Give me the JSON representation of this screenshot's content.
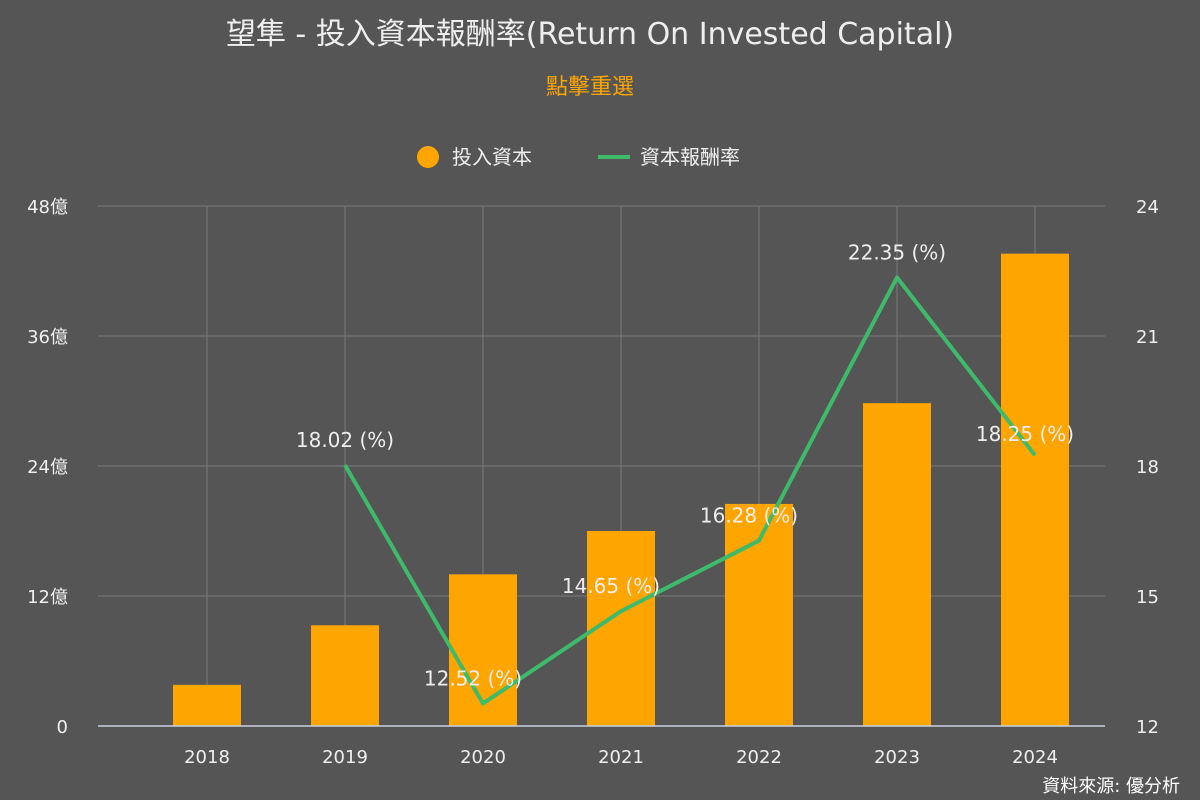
{
  "title": "望隼 - 投入資本報酬率(Return On Invested Capital)",
  "subtitle": "點擊重選",
  "source": "資料來源: 優分析",
  "colors": {
    "bar": "#ffa500",
    "line": "#3dbb6a",
    "background": "#555555"
  },
  "chart_data": {
    "type": "bar",
    "categories": [
      "2018",
      "2019",
      "2020",
      "2021",
      "2022",
      "2023",
      "2024"
    ],
    "series": [
      {
        "name": "投入資本",
        "type": "bar",
        "axis": "left",
        "values": [
          3.8,
          9.3,
          14.0,
          18.0,
          20.5,
          29.8,
          43.6
        ]
      },
      {
        "name": "資本報酬率",
        "type": "line",
        "axis": "right",
        "values": [
          null,
          18.02,
          12.52,
          14.65,
          16.28,
          22.35,
          18.25
        ],
        "labels": [
          "",
          "18.02 (%)",
          "12.52 (%)",
          "14.65 (%)",
          "16.28 (%)",
          "22.35 (%)",
          "18.25 (%)"
        ]
      }
    ],
    "y_left": {
      "min": 0,
      "max": 48,
      "ticks": [
        0,
        12,
        24,
        36,
        48
      ],
      "tick_labels": [
        "0",
        "12億",
        "24億",
        "36億",
        "48億"
      ]
    },
    "y_right": {
      "min": 12,
      "max": 24,
      "ticks": [
        12,
        15,
        18,
        21,
        24
      ],
      "tick_labels": [
        "12",
        "15",
        "18",
        "21",
        "24"
      ]
    },
    "grid": true,
    "legend": "top-center"
  }
}
